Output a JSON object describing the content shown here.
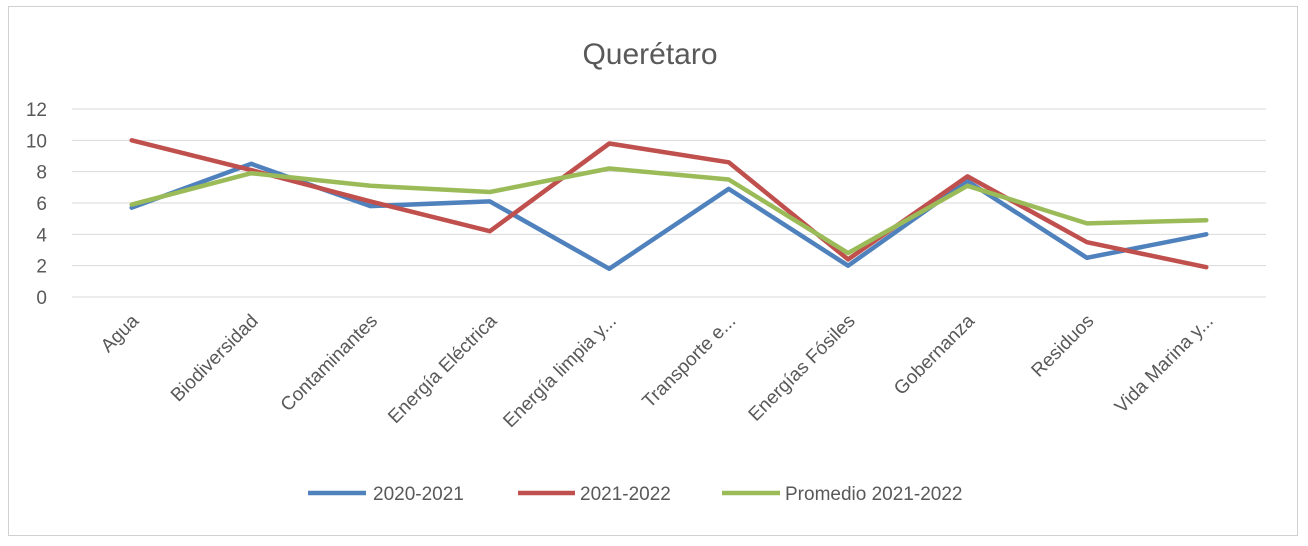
{
  "chart_data": {
    "type": "line",
    "title": "Querétaro",
    "xlabel": "",
    "ylabel": "",
    "ylim": [
      0,
      12
    ],
    "yticks": [
      "0",
      "2",
      "4",
      "6",
      "8",
      "10",
      "12"
    ],
    "grid": true,
    "legend_position": "bottom",
    "categories": [
      "Agua",
      "Biodiversidad",
      "Contaminantes",
      "Energía Eléctrica",
      "Energía limpia y...",
      "Transporte e...",
      "Energías Fósiles",
      "Gobernanza",
      "Residuos",
      "Vida Marina y..."
    ],
    "series": [
      {
        "name": "2020-2021",
        "color": "#4f81bd",
        "values": [
          5.7,
          8.5,
          5.8,
          6.1,
          1.8,
          6.9,
          2.0,
          7.4,
          2.5,
          4.0
        ]
      },
      {
        "name": "2021-2022",
        "color": "#c0504d",
        "values": [
          10.0,
          8.1,
          6.1,
          4.2,
          9.8,
          8.6,
          2.4,
          7.7,
          3.5,
          1.9
        ]
      },
      {
        "name": "Promedio 2021-2022",
        "color": "#9bbb59",
        "values": [
          5.9,
          7.9,
          7.1,
          6.7,
          8.2,
          7.5,
          2.8,
          7.1,
          4.7,
          4.9
        ]
      }
    ]
  }
}
